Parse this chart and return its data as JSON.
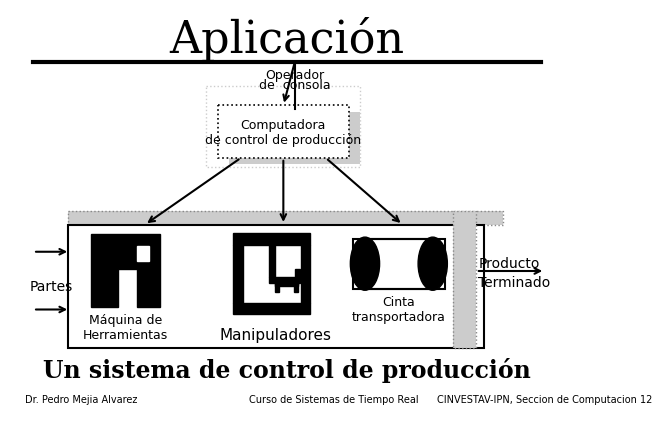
{
  "title": "Aplicación",
  "subtitle": "Un sistema de control de producción",
  "footer_left": "Dr. Pedro Mejia Alvarez",
  "footer_center": "Curso de Sistemas de Tiempo Real",
  "footer_right": "CINVESTAV-IPN, Seccion de Computacion 12",
  "operador_line1": "Operador",
  "operador_line2": "de  consola",
  "computadora_label": "Computadora\nde control de producción",
  "partes_label": "Partes",
  "maquina_label": "Máquina de\nHerramientas",
  "manipuladores_label": "Manipuladores",
  "cinta_label": "Cinta\ntransportadora",
  "producto_label": "Producto",
  "terminado_label": "Terminado",
  "bg_color": "#ffffff",
  "line_color": "#000000",
  "gray_color": "#aaaaaa",
  "light_gray": "#cccccc"
}
